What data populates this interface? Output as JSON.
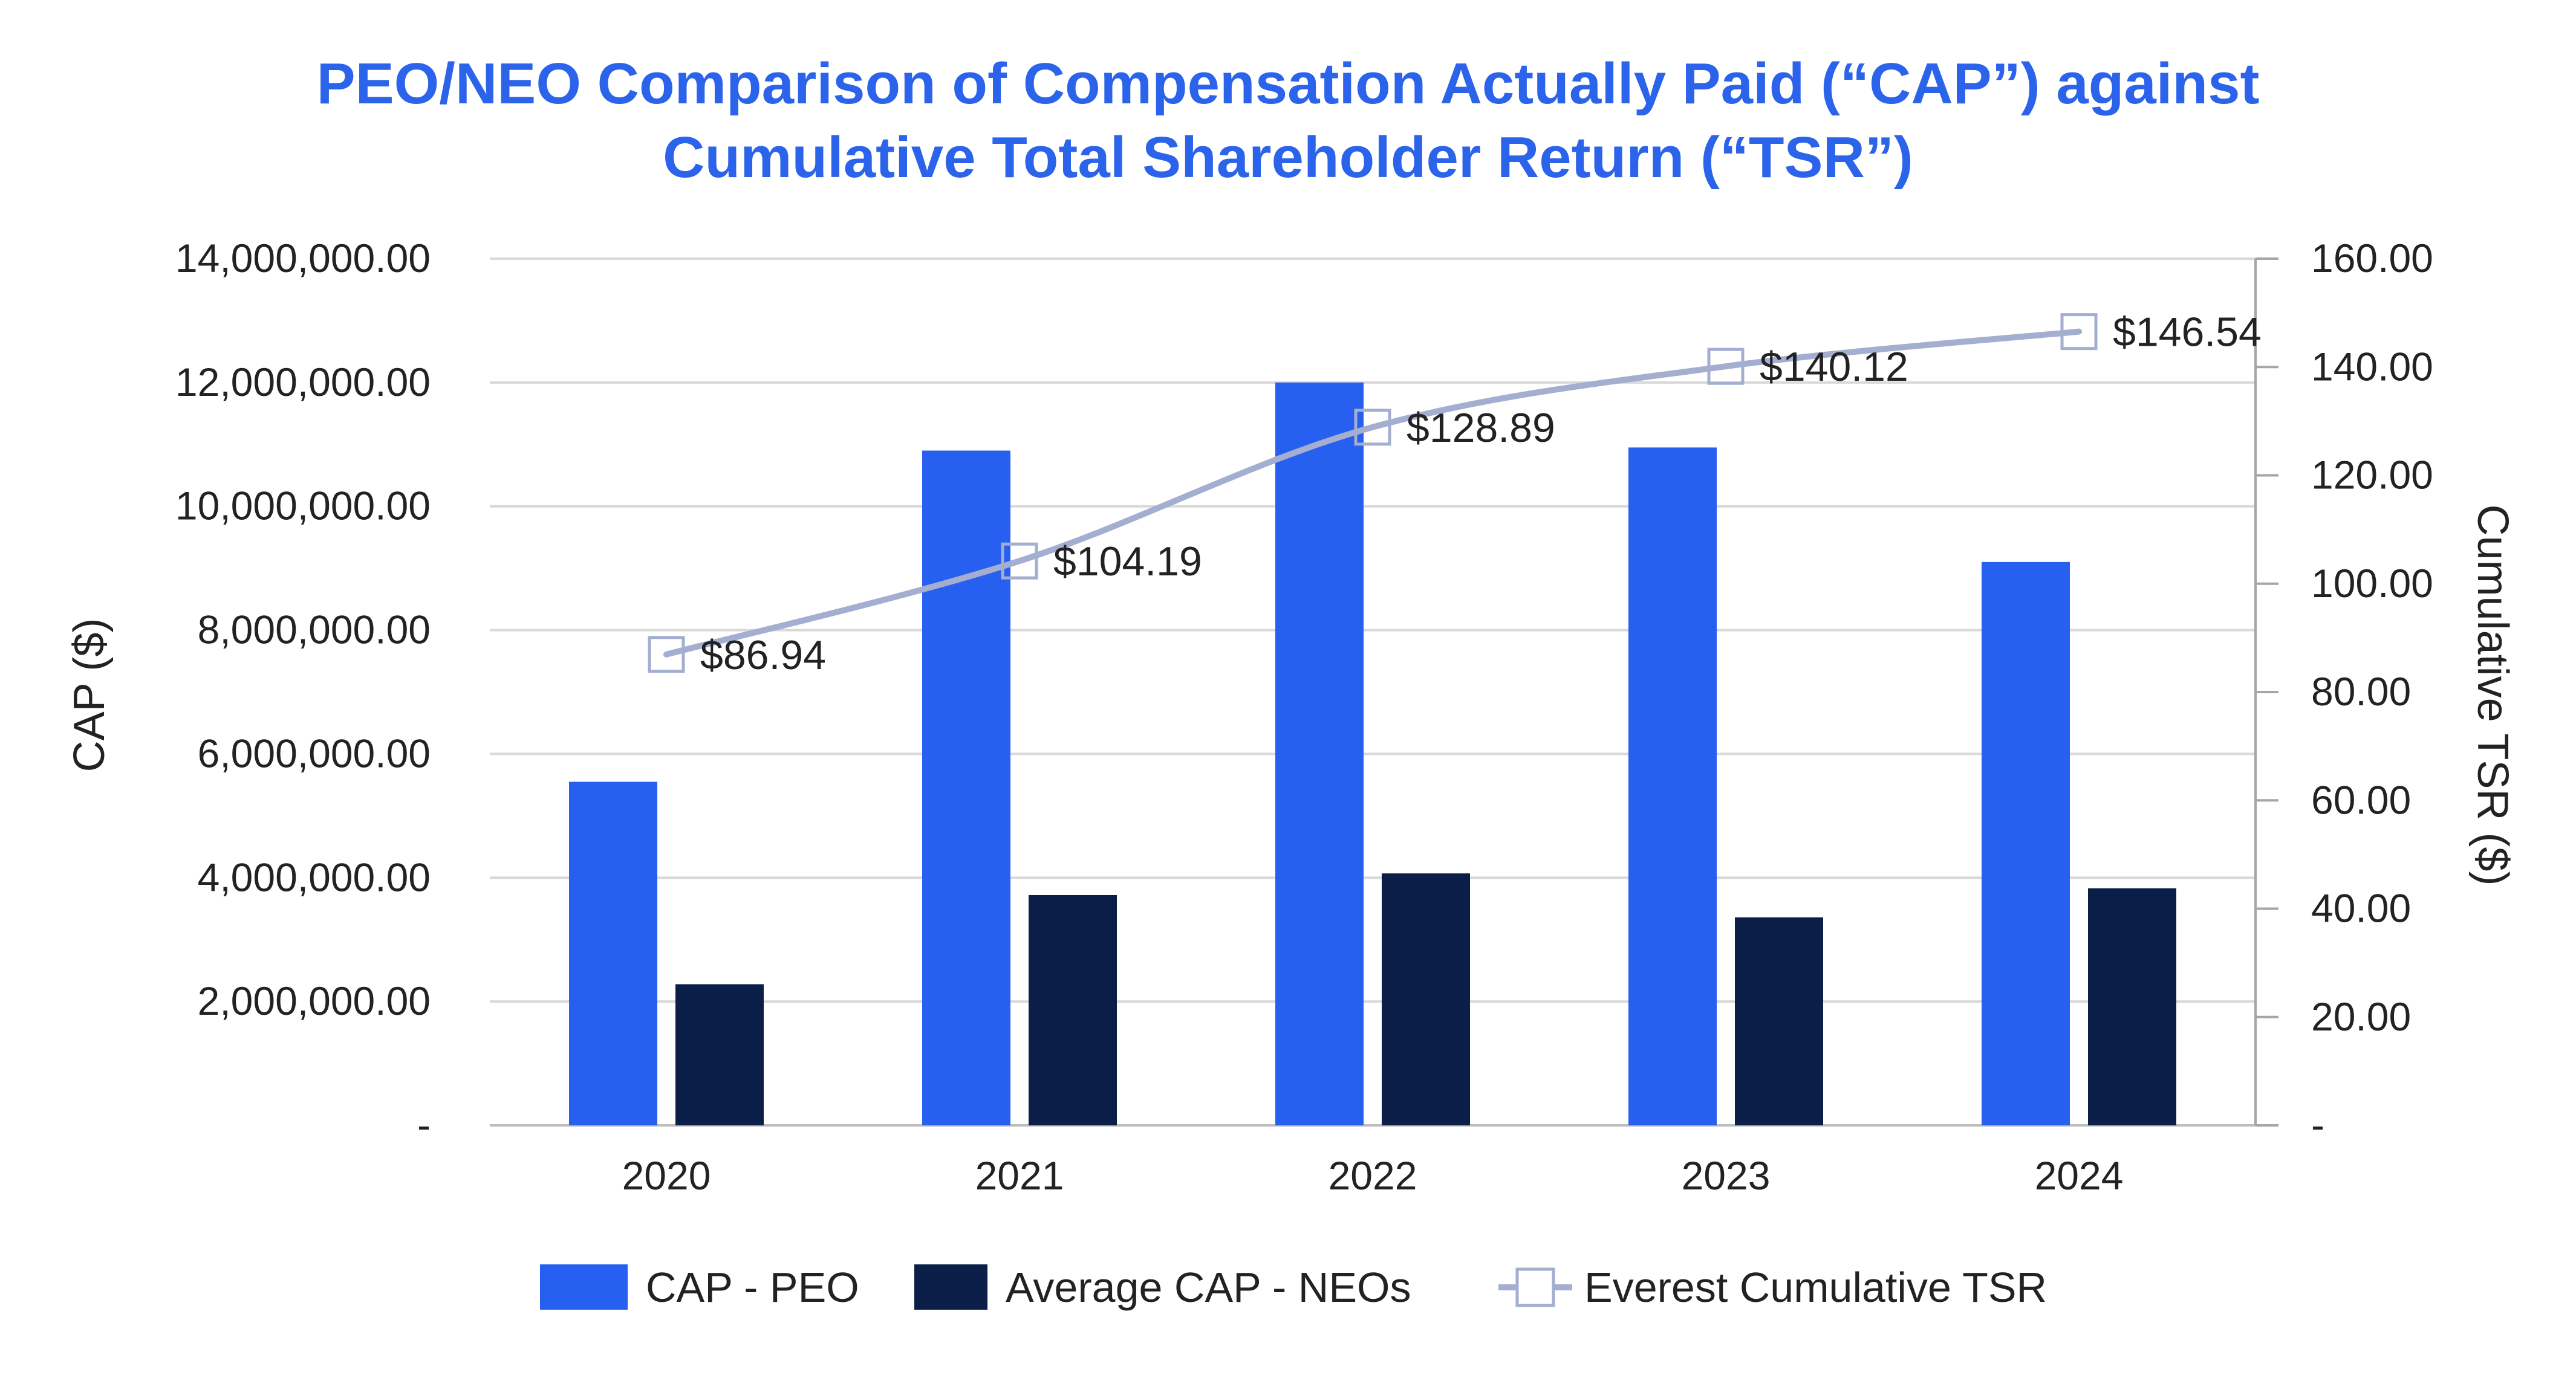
{
  "title_line1": "PEO/NEO Comparison of Compensation Actually Paid (“CAP”) against",
  "title_line2": "Cumulative Total Shareholder Return (“TSR”)",
  "chart_data": {
    "type": "bar",
    "title": "PEO/NEO Comparison of Compensation Actually Paid (“CAP”) against Cumulative Total Shareholder Return (“TSR”)",
    "categories": [
      "2020",
      "2021",
      "2022",
      "2023",
      "2024"
    ],
    "series": [
      {
        "name": "CAP - PEO",
        "type": "bar",
        "axis": "left",
        "color": "#2760f0",
        "values": [
          5550000,
          10900000,
          12000000,
          10950000,
          9100000
        ]
      },
      {
        "name": "Average CAP - NEOs",
        "type": "bar",
        "axis": "left",
        "color": "#0b1e48",
        "values": [
          2280000,
          3720000,
          4070000,
          3360000,
          3830000
        ]
      },
      {
        "name": "Everest Cumulative TSR",
        "type": "line",
        "axis": "right",
        "color": "#a3aed0",
        "values": [
          86.94,
          104.19,
          128.89,
          140.12,
          146.54
        ],
        "labels": [
          "$86.94",
          "$104.19",
          "$128.89",
          "$140.12",
          "$146.54"
        ]
      }
    ],
    "ylabel": "CAP ($)",
    "y2label": "Cumulative TSR ($)",
    "ylim": [
      0,
      14000000
    ],
    "y2lim": [
      0,
      160
    ],
    "yticks": [
      0,
      2000000,
      4000000,
      6000000,
      8000000,
      10000000,
      12000000,
      14000000
    ],
    "ytick_labels": [
      "-",
      "2,000,000.00",
      "4,000,000.00",
      "6,000,000.00",
      "8,000,000.00",
      "10,000,000.00",
      "12,000,000.00",
      "14,000,000.00"
    ],
    "y2ticks": [
      0,
      20,
      40,
      60,
      80,
      100,
      120,
      140,
      160
    ],
    "y2tick_labels": [
      "-",
      "20.00",
      "40.00",
      "60.00",
      "80.00",
      "100.00",
      "120.00",
      "140.00",
      "160.00"
    ],
    "grid": true,
    "legend_position": "bottom"
  }
}
